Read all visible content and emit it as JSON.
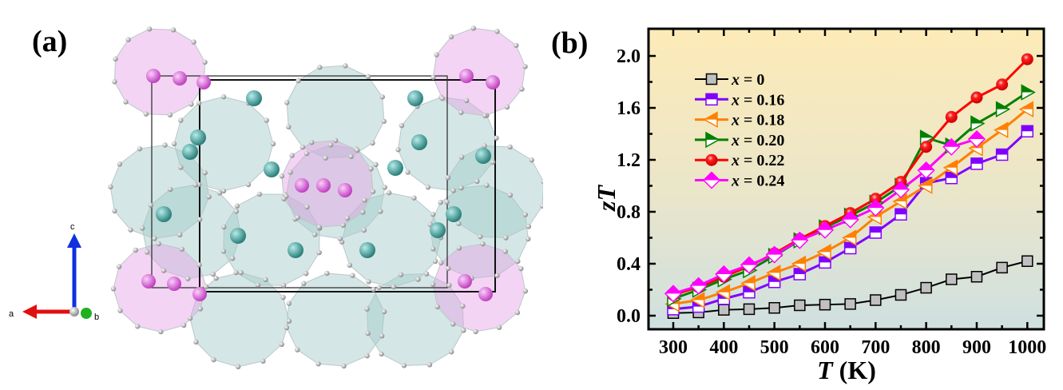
{
  "panel_a": {
    "label": "(a)",
    "axes_labels": {
      "a": "a",
      "b": "b",
      "c": "c"
    },
    "colors": {
      "cage": "#9fc9c6",
      "guest_pink": "#e07ae0",
      "guest_teal": "#3f9e9a",
      "framework_atom": "#d8d8d8",
      "cell_edge": "#111111",
      "axis_a": "#e01010",
      "axis_b": "#20b020",
      "axis_c": "#1030e0"
    }
  },
  "panel_b": {
    "label": "(b)",
    "background_gradient": [
      "#fdebb8",
      "#cfe0e0"
    ]
  },
  "chart_data": {
    "type": "line",
    "xlabel_italic": "T",
    "xlabel_unit": " (K)",
    "ylabel_italic": "zT",
    "xlim": [
      275,
      1025
    ],
    "ylim": [
      -0.1,
      2.2
    ],
    "xticks": [
      300,
      400,
      500,
      600,
      700,
      800,
      900,
      1000
    ],
    "yticks": [
      "0.0",
      "0.4",
      "0.8",
      "1.2",
      "1.6",
      "2.0"
    ],
    "grid": false,
    "legend_placement": "top-left",
    "x": [
      300,
      350,
      400,
      450,
      500,
      550,
      600,
      650,
      700,
      750,
      800,
      850,
      900,
      950,
      1000
    ],
    "series": [
      {
        "name_var": "x",
        "name_val": " = 0",
        "color": "#000000",
        "marker": "square",
        "fill": "#c0c0c0",
        "values": [
          0.02,
          0.025,
          0.045,
          0.05,
          0.06,
          0.08,
          0.085,
          0.09,
          0.12,
          0.16,
          0.215,
          0.28,
          0.3,
          0.37,
          0.42
        ]
      },
      {
        "name_var": "x",
        "name_val": " = 0.16",
        "color": "#8000ff",
        "marker": "half-square",
        "values": [
          0.05,
          0.07,
          0.13,
          0.18,
          0.26,
          0.32,
          0.41,
          0.52,
          0.64,
          0.78,
          1.02,
          1.06,
          1.17,
          1.24,
          1.42
        ]
      },
      {
        "name_var": "x",
        "name_val": " = 0.18",
        "color": "#ff8000",
        "marker": "left-triangle",
        "values": [
          0.09,
          0.12,
          0.18,
          0.25,
          0.33,
          0.4,
          0.49,
          0.6,
          0.76,
          0.88,
          1.0,
          1.14,
          1.29,
          1.43,
          1.59
        ]
      },
      {
        "name_var": "x",
        "name_val": " = 0.20",
        "color": "#008000",
        "marker": "right-triangle",
        "values": [
          0.13,
          0.2,
          0.28,
          0.35,
          0.46,
          0.58,
          0.68,
          0.77,
          0.87,
          1.0,
          1.37,
          1.31,
          1.48,
          1.59,
          1.72
        ]
      },
      {
        "name_var": "x",
        "name_val": " = 0.22",
        "color": "#ff0000",
        "marker": "sphere",
        "values": [
          0.16,
          0.22,
          0.3,
          0.38,
          0.48,
          0.59,
          0.69,
          0.79,
          0.9,
          1.03,
          1.3,
          1.53,
          1.68,
          1.78,
          1.975
        ]
      },
      {
        "name_var": "x",
        "name_val": " = 0.24",
        "color": "#ff00ff",
        "marker": "diamond",
        "values": [
          0.17,
          0.23,
          0.32,
          0.39,
          0.47,
          0.58,
          0.66,
          0.74,
          0.83,
          0.97,
          1.12,
          1.3,
          1.36,
          null,
          null
        ]
      }
    ]
  }
}
